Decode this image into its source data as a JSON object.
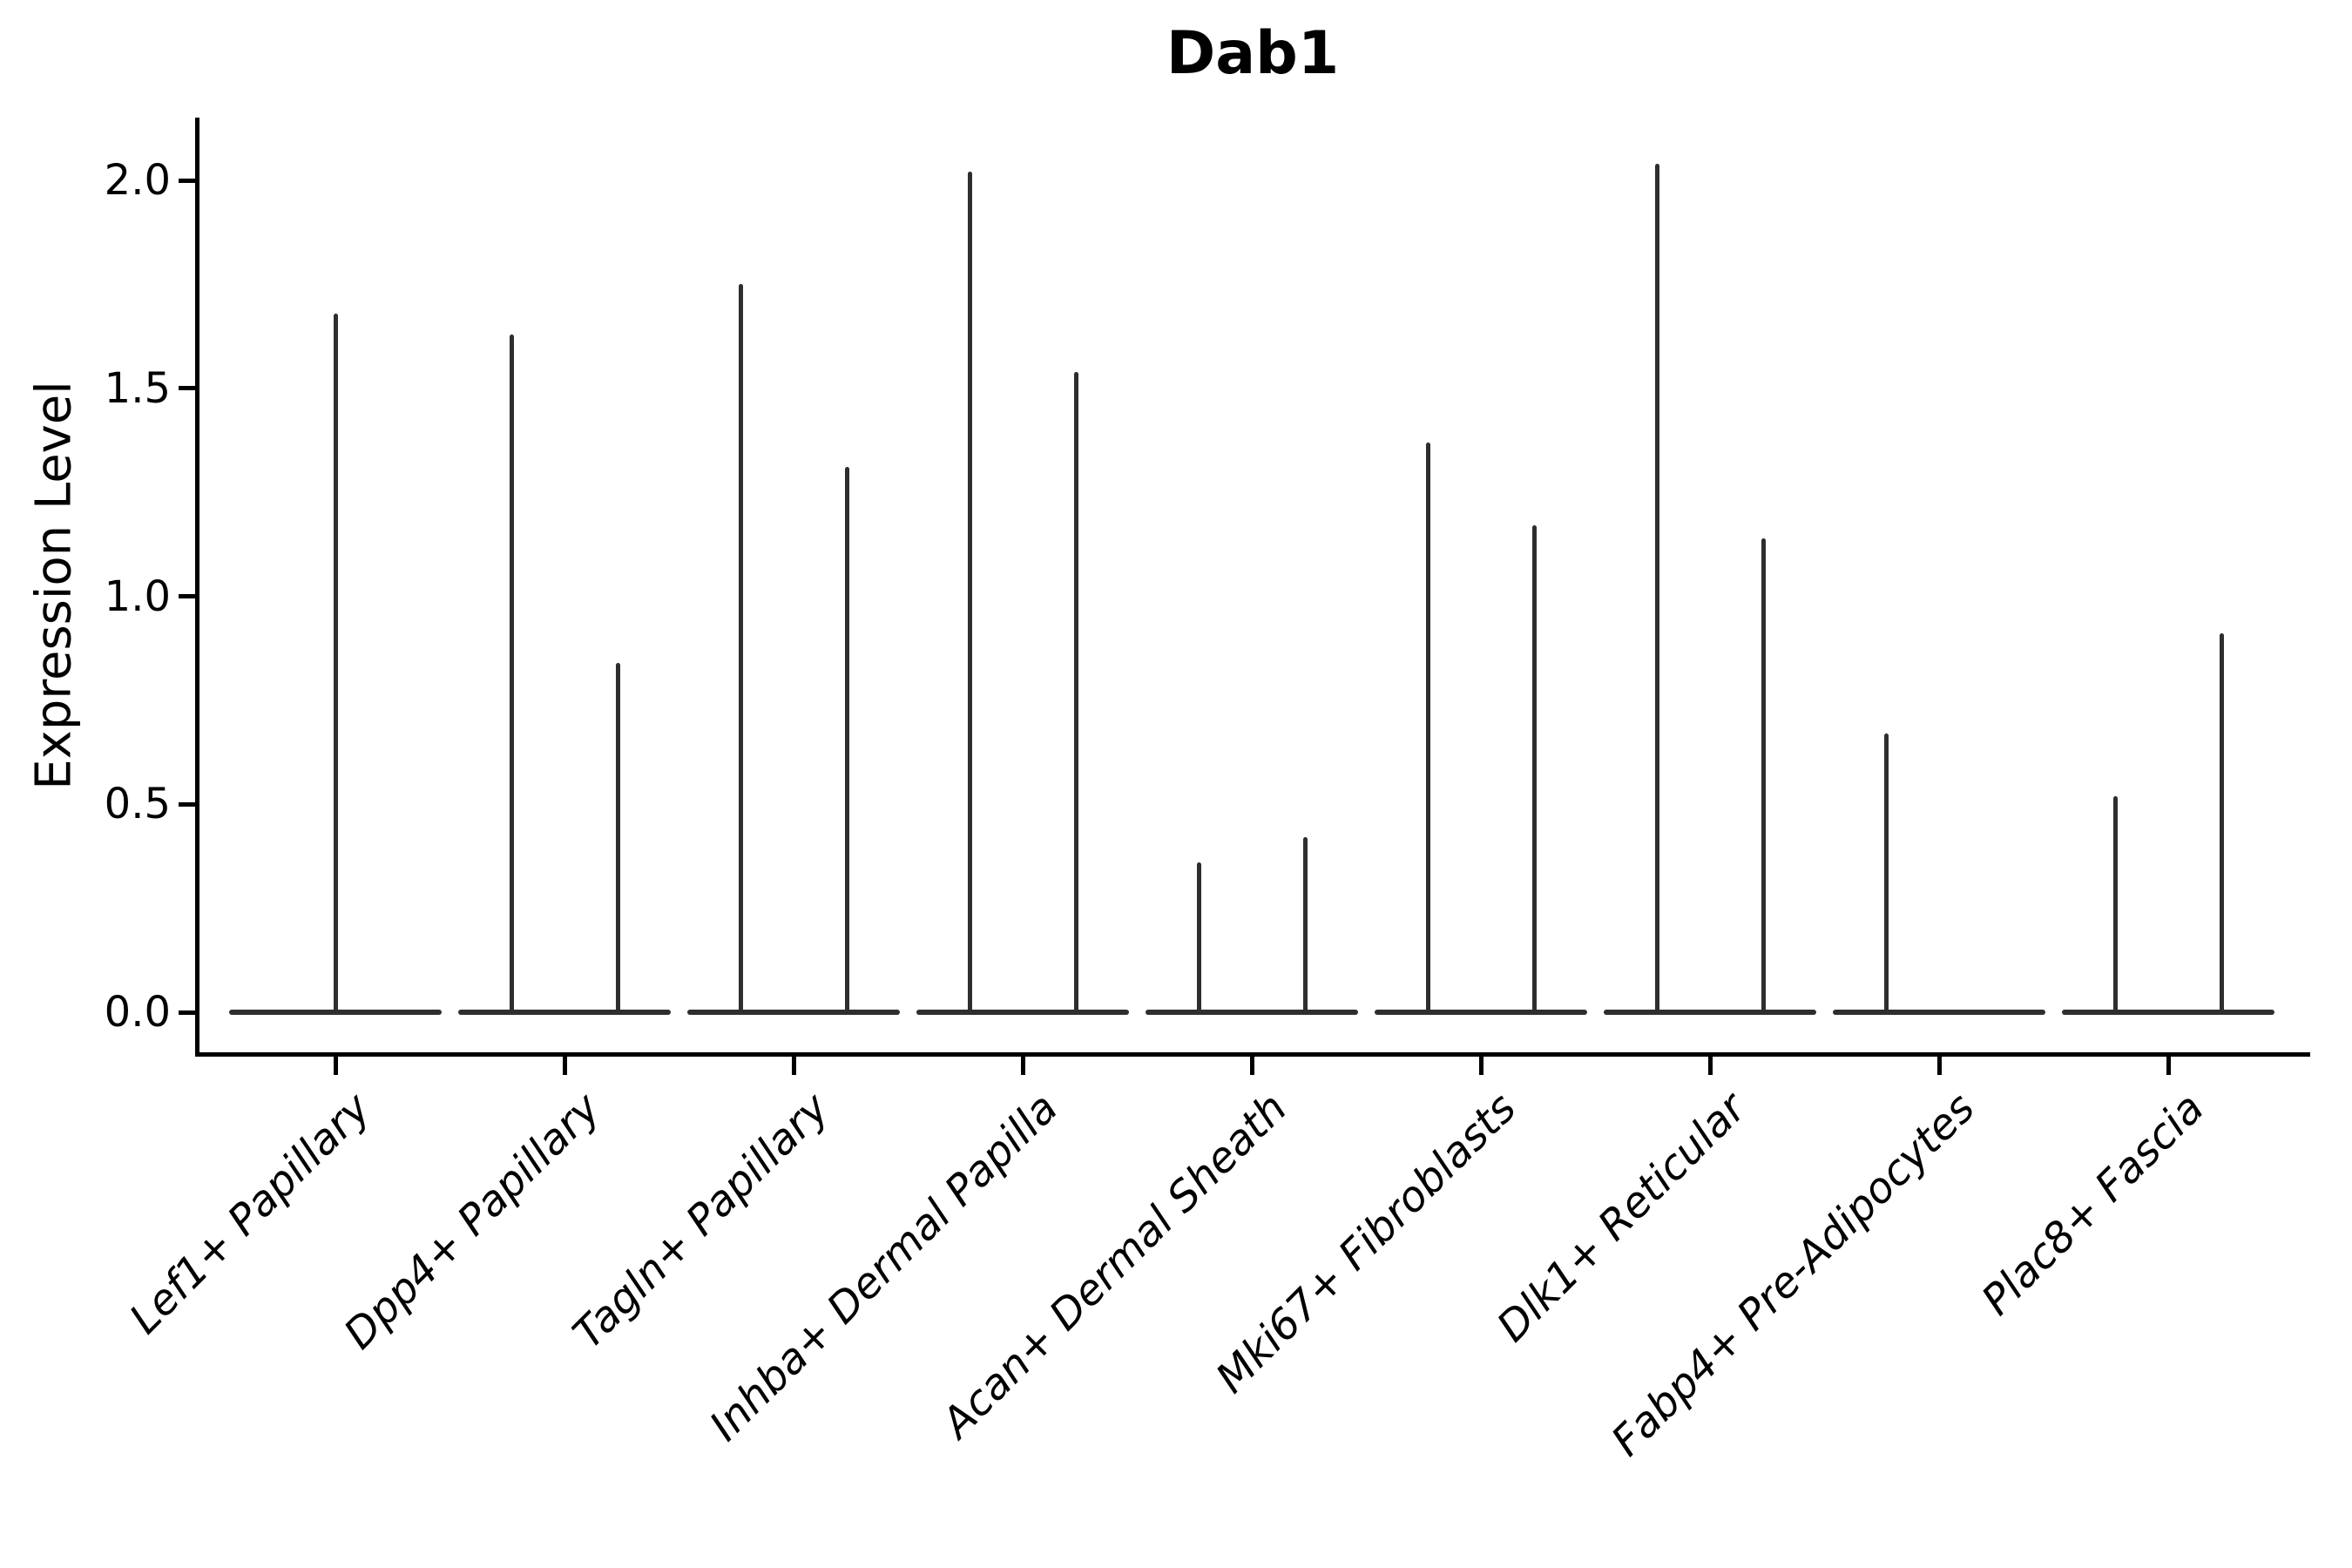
{
  "title": "Dab1",
  "axes": {
    "ylabel": "Expression Level",
    "ytick_labels": [
      "0.0",
      "0.5",
      "1.0",
      "1.5",
      "2.0"
    ]
  },
  "chart_data": {
    "type": "violin",
    "title": "Dab1",
    "xlabel": "",
    "ylabel": "Expression Level",
    "ylim": [
      -0.1,
      2.15
    ],
    "yticks": [
      0,
      0.5,
      1.0,
      1.5,
      2.0
    ],
    "grid": false,
    "legend_position": "none",
    "baseline_value": 0.0,
    "categories": [
      "Lef1+ Papillary",
      "Dpp4+ Papillary",
      "Tagln+ Papillary",
      "Inhba+ Dermal Papilla",
      "Acan+ Dermal Sheath",
      "Mki67+ Fibroblasts",
      "Dlk1+ Reticular",
      "Fabp4+ Pre-Adipocytes",
      "Plac8+ Fascia"
    ],
    "groups": [
      {
        "label": "Lef1+ Papillary",
        "violins": [
          {
            "slot": "center",
            "max_expression": 1.68
          }
        ]
      },
      {
        "label": "Dpp4+ Papillary",
        "violins": [
          {
            "slot": "left",
            "max_expression": 1.63
          },
          {
            "slot": "right",
            "max_expression": 0.84
          }
        ]
      },
      {
        "label": "Tagln+ Papillary",
        "violins": [
          {
            "slot": "left",
            "max_expression": 1.75
          },
          {
            "slot": "right",
            "max_expression": 1.31
          }
        ]
      },
      {
        "label": "Inhba+ Dermal Papilla",
        "violins": [
          {
            "slot": "left",
            "max_expression": 2.02
          },
          {
            "slot": "right",
            "max_expression": 1.54
          }
        ]
      },
      {
        "label": "Acan+ Dermal Sheath",
        "violins": [
          {
            "slot": "left",
            "max_expression": 0.36
          },
          {
            "slot": "right",
            "max_expression": 0.42
          }
        ]
      },
      {
        "label": "Mki67+ Fibroblasts",
        "violins": [
          {
            "slot": "left",
            "max_expression": 1.37
          },
          {
            "slot": "right",
            "max_expression": 1.17
          }
        ]
      },
      {
        "label": "Dlk1+ Reticular",
        "violins": [
          {
            "slot": "left",
            "max_expression": 2.04
          },
          {
            "slot": "right",
            "max_expression": 1.14
          }
        ]
      },
      {
        "label": "Fabp4+ Pre-Adipocytes",
        "violins": [
          {
            "slot": "left",
            "max_expression": 0.67
          }
        ]
      },
      {
        "label": "Plac8+ Fascia",
        "violins": [
          {
            "slot": "left",
            "max_expression": 0.52
          },
          {
            "slot": "right",
            "max_expression": 0.91
          }
        ]
      }
    ]
  },
  "colors": {
    "violin_line": "#2e2e2e",
    "axis": "#000000",
    "text": "#000000",
    "background": "#ffffff"
  }
}
